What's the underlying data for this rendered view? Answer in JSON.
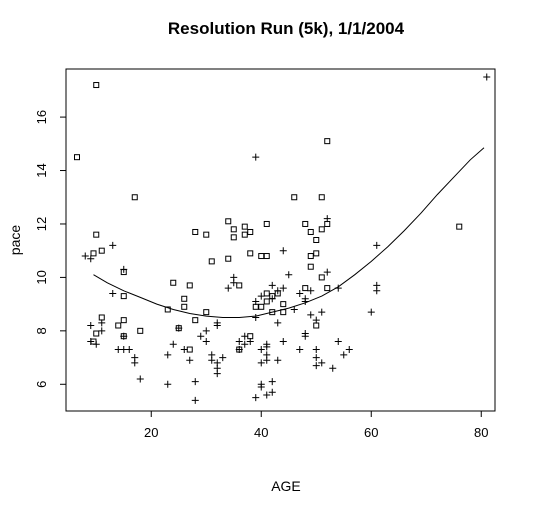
{
  "chart_data": {
    "type": "scatter",
    "title": "Resolution Run (5k), 1/1/2004",
    "xlabel": "AGE",
    "ylabel": "pace",
    "xlim": [
      4.5,
      82.5
    ],
    "ylim": [
      5.0,
      17.8
    ],
    "x_ticks": [
      20,
      40,
      60,
      80
    ],
    "y_ticks": [
      6,
      8,
      10,
      12,
      14,
      16
    ],
    "grid": false,
    "legend": "none",
    "series": [
      {
        "marker": "square",
        "points": [
          [
            6.5,
            14.5
          ],
          [
            10,
            17.2
          ],
          [
            9.5,
            10.9
          ],
          [
            10,
            11.6
          ],
          [
            11,
            11
          ],
          [
            9.5,
            7.6
          ],
          [
            10,
            7.9
          ],
          [
            11,
            8.5
          ],
          [
            14,
            8.2
          ],
          [
            15,
            10.2
          ],
          [
            15,
            9.3
          ],
          [
            15,
            8.4
          ],
          [
            15,
            7.8
          ],
          [
            17,
            13
          ],
          [
            18,
            8
          ],
          [
            23,
            8.8
          ],
          [
            24,
            9.8
          ],
          [
            25,
            8.1
          ],
          [
            26,
            9.2
          ],
          [
            26,
            8.9
          ],
          [
            27,
            9.7
          ],
          [
            27,
            7.3
          ],
          [
            28,
            11.7
          ],
          [
            28,
            8.4
          ],
          [
            30,
            11.6
          ],
          [
            30,
            8.7
          ],
          [
            31,
            10.6
          ],
          [
            34,
            12.1
          ],
          [
            34,
            10.7
          ],
          [
            35,
            11.8
          ],
          [
            35,
            11.5
          ],
          [
            36,
            9.7
          ],
          [
            36,
            7.3
          ],
          [
            37,
            11.9
          ],
          [
            37,
            11.6
          ],
          [
            38,
            11.7
          ],
          [
            38,
            10.9
          ],
          [
            39,
            8.9
          ],
          [
            38,
            7.8
          ],
          [
            40,
            8.9
          ],
          [
            40,
            10.8
          ],
          [
            41,
            12
          ],
          [
            41,
            10.8
          ],
          [
            41,
            9.4
          ],
          [
            41,
            9.1
          ],
          [
            42,
            9.3
          ],
          [
            42,
            8.7
          ],
          [
            43,
            9.4
          ],
          [
            44,
            9
          ],
          [
            44,
            8.7
          ],
          [
            46,
            13
          ],
          [
            48,
            12
          ],
          [
            48,
            9.6
          ],
          [
            49,
            11.7
          ],
          [
            49,
            10.8
          ],
          [
            49,
            10.4
          ],
          [
            50,
            11.4
          ],
          [
            50,
            10.9
          ],
          [
            50,
            8.2
          ],
          [
            51,
            11.8
          ],
          [
            51,
            13
          ],
          [
            51,
            10
          ],
          [
            52,
            15.1
          ],
          [
            52,
            12
          ],
          [
            52,
            9.6
          ],
          [
            76,
            11.9
          ]
        ]
      },
      {
        "marker": "plus",
        "points": [
          [
            8,
            10.8
          ],
          [
            9,
            10.7
          ],
          [
            9,
            8.2
          ],
          [
            9,
            7.6
          ],
          [
            10,
            7.5
          ],
          [
            11,
            8
          ],
          [
            11,
            8.3
          ],
          [
            13,
            11.2
          ],
          [
            13,
            9.4
          ],
          [
            14,
            7.3
          ],
          [
            15,
            7.8
          ],
          [
            15,
            7.3
          ],
          [
            15,
            10.3
          ],
          [
            16,
            7.3
          ],
          [
            17,
            7
          ],
          [
            17,
            6.8
          ],
          [
            18,
            6.2
          ],
          [
            23,
            7.1
          ],
          [
            23,
            6
          ],
          [
            24,
            7.5
          ],
          [
            25,
            8.1
          ],
          [
            26,
            7.3
          ],
          [
            27,
            6.9
          ],
          [
            28,
            6.1
          ],
          [
            28,
            5.4
          ],
          [
            29,
            7.8
          ],
          [
            30,
            8
          ],
          [
            30,
            7.6
          ],
          [
            31,
            7.1
          ],
          [
            31,
            6.9
          ],
          [
            32,
            8.3
          ],
          [
            32,
            8.2
          ],
          [
            32,
            6.8
          ],
          [
            32,
            6.6
          ],
          [
            32,
            6.4
          ],
          [
            33,
            7
          ],
          [
            34,
            9.6
          ],
          [
            35,
            10
          ],
          [
            35,
            9.8
          ],
          [
            36,
            7.6
          ],
          [
            36,
            7.3
          ],
          [
            37,
            7.5
          ],
          [
            37,
            7.8
          ],
          [
            38,
            7.6
          ],
          [
            39,
            9.1
          ],
          [
            39,
            8.5
          ],
          [
            39,
            14.5
          ],
          [
            39,
            5.5
          ],
          [
            40,
            9.3
          ],
          [
            40,
            7.3
          ],
          [
            40,
            6.8
          ],
          [
            40,
            6
          ],
          [
            40,
            5.9
          ],
          [
            41,
            7.5
          ],
          [
            41,
            7.4
          ],
          [
            41,
            7.1
          ],
          [
            41,
            6.9
          ],
          [
            41,
            5.6
          ],
          [
            42,
            9.7
          ],
          [
            42,
            9.2
          ],
          [
            42,
            6.1
          ],
          [
            42,
            5.7
          ],
          [
            43,
            9.5
          ],
          [
            43,
            8.3
          ],
          [
            43,
            6.9
          ],
          [
            44,
            9.6
          ],
          [
            44,
            7.6
          ],
          [
            44,
            11
          ],
          [
            45,
            10.1
          ],
          [
            46,
            8.8
          ],
          [
            47,
            9.4
          ],
          [
            47,
            7.3
          ],
          [
            48,
            9.2
          ],
          [
            48,
            9.1
          ],
          [
            48,
            7.9
          ],
          [
            48,
            7.8
          ],
          [
            49,
            8.6
          ],
          [
            49,
            9.5
          ],
          [
            50,
            8.4
          ],
          [
            50,
            7.3
          ],
          [
            50,
            7
          ],
          [
            50,
            6.7
          ],
          [
            51,
            8.7
          ],
          [
            51,
            6.8
          ],
          [
            52,
            12.2
          ],
          [
            52,
            10.2
          ],
          [
            53,
            6.6
          ],
          [
            54,
            9.6
          ],
          [
            54,
            7.6
          ],
          [
            55,
            7.1
          ],
          [
            56,
            7.3
          ],
          [
            60,
            8.7
          ],
          [
            61,
            11.2
          ],
          [
            61,
            9.5
          ],
          [
            61,
            9.7
          ],
          [
            81,
            17.5
          ]
        ]
      }
    ],
    "curve": {
      "x": [
        9.5,
        12,
        15,
        18,
        21,
        24,
        27,
        30,
        33,
        36,
        39,
        42,
        45,
        48,
        51,
        54,
        57,
        60,
        63,
        66,
        69,
        72,
        75,
        78,
        80.5
      ],
      "y": [
        10.1,
        9.8,
        9.5,
        9.25,
        9.0,
        8.8,
        8.65,
        8.55,
        8.5,
        8.5,
        8.55,
        8.7,
        8.85,
        9.05,
        9.3,
        9.65,
        10.1,
        10.6,
        11.15,
        11.75,
        12.4,
        13.1,
        13.75,
        14.4,
        14.85
      ]
    }
  }
}
